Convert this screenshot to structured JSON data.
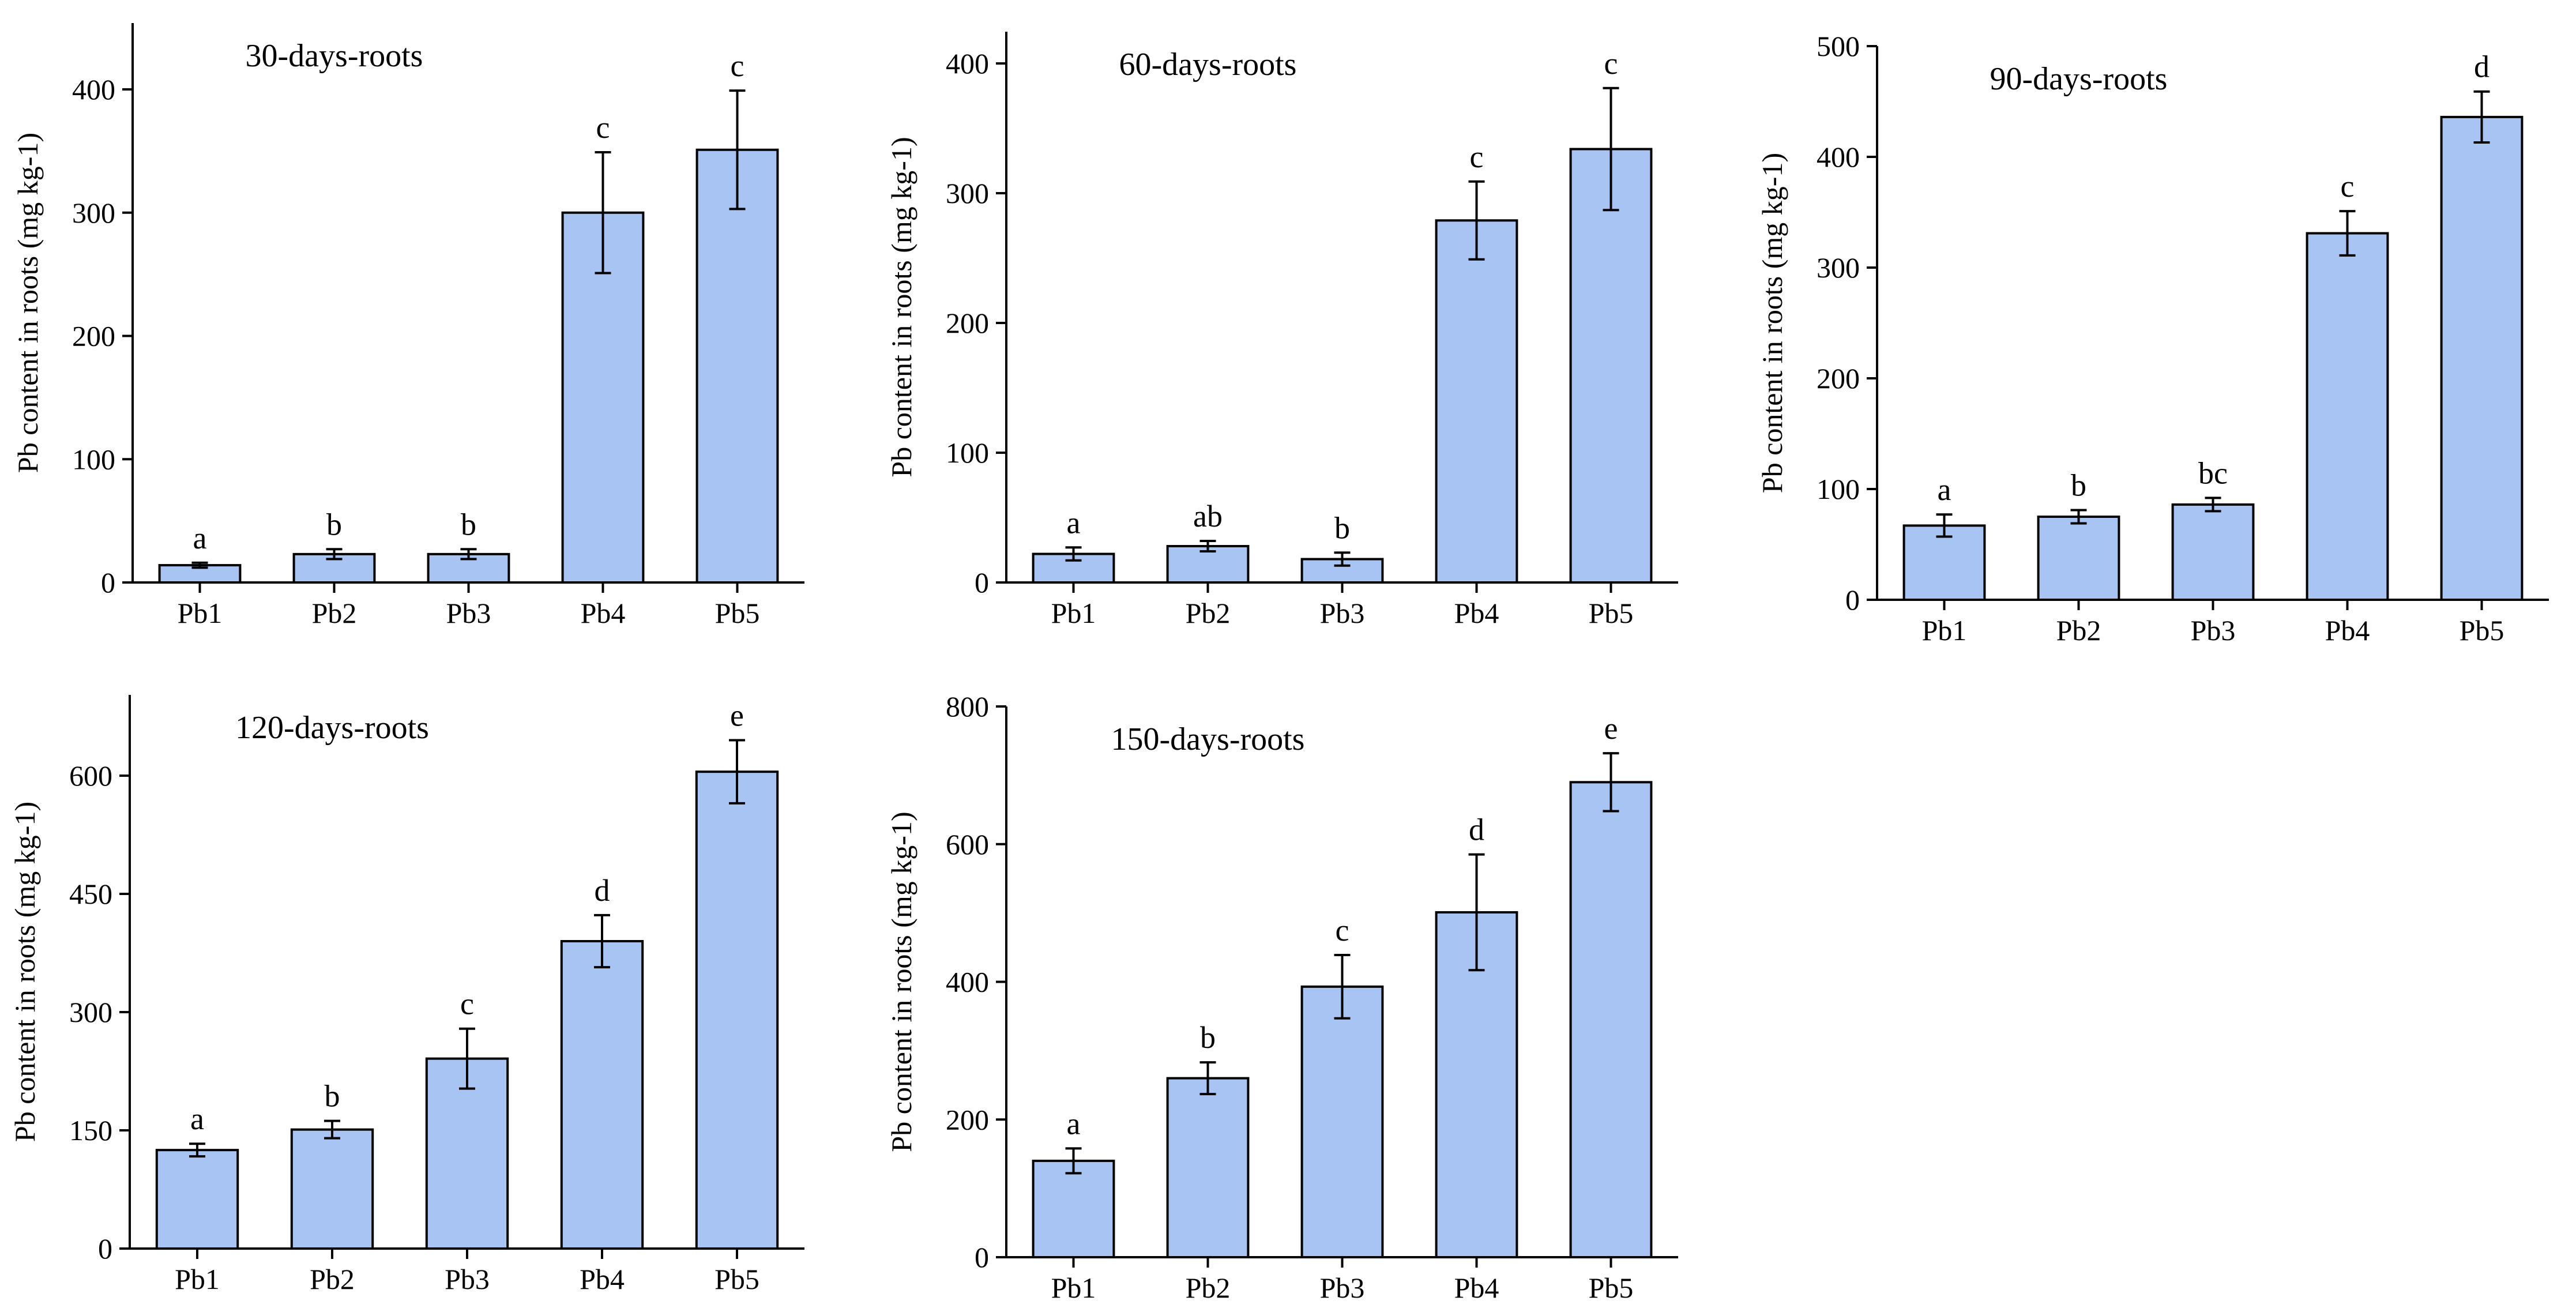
{
  "colors": {
    "bar_fill": "#a8c4f2",
    "bar_stroke": "#000000",
    "axis": "#000000"
  },
  "chart_data": [
    {
      "type": "bar",
      "title": "30-days-roots",
      "ylabel": "Pb content in roots (mg kg-1)",
      "categories": [
        "Pb1",
        "Pb2",
        "Pb3",
        "Pb4",
        "Pb5"
      ],
      "values": [
        14,
        23,
        23,
        300,
        351
      ],
      "errors": [
        2,
        4,
        4,
        49,
        48
      ],
      "letters": [
        "a",
        "b",
        "b",
        "c",
        "c"
      ],
      "ylim": [
        0,
        450
      ],
      "yticks": [
        0,
        100,
        200,
        300,
        400
      ]
    },
    {
      "type": "bar",
      "title": "60-days-roots",
      "ylabel": "Pb content in roots (mg kg-1)",
      "categories": [
        "Pb1",
        "Pb2",
        "Pb3",
        "Pb4",
        "Pb5"
      ],
      "values": [
        22,
        28,
        18,
        279,
        334
      ],
      "errors": [
        5,
        4,
        5,
        30,
        47
      ],
      "letters": [
        "a",
        "ab",
        "b",
        "c",
        "c"
      ],
      "ylim": [
        0,
        430
      ],
      "yticks": [
        0,
        100,
        200,
        300,
        400
      ]
    },
    {
      "type": "bar",
      "title": "90-days-roots",
      "ylabel": "Pb content in roots (mg kg-1)",
      "categories": [
        "Pb1",
        "Pb2",
        "Pb3",
        "Pb4",
        "Pb5"
      ],
      "values": [
        67,
        75,
        86,
        331,
        436
      ],
      "errors": [
        10,
        6,
        6,
        20,
        23
      ],
      "letters": [
        "a",
        "b",
        "bc",
        "c",
        "d"
      ],
      "ylim": [
        0,
        500
      ],
      "yticks": [
        0,
        100,
        200,
        300,
        400,
        500
      ]
    },
    {
      "type": "bar",
      "title": "120-days-roots",
      "ylabel": "Pb content in roots (mg kg-1)",
      "categories": [
        "Pb1",
        "Pb2",
        "Pb3",
        "Pb4",
        "Pb5"
      ],
      "values": [
        125,
        151,
        241,
        390,
        605
      ],
      "errors": [
        8,
        11,
        38,
        33,
        40
      ],
      "letters": [
        "a",
        "b",
        "c",
        "d",
        "e"
      ],
      "ylim": [
        0,
        700
      ],
      "yticks": [
        0,
        150,
        300,
        450,
        600
      ]
    },
    {
      "type": "bar",
      "title": "150-days-roots",
      "ylabel": "Pb content in roots (mg kg-1)",
      "categories": [
        "Pb1",
        "Pb2",
        "Pb3",
        "Pb4",
        "Pb5"
      ],
      "values": [
        140,
        260,
        393,
        501,
        690
      ],
      "errors": [
        18,
        23,
        46,
        84,
        42
      ],
      "letters": [
        "a",
        "b",
        "c",
        "d",
        "e"
      ],
      "ylim": [
        0,
        800
      ],
      "yticks": [
        0,
        200,
        400,
        600,
        800
      ]
    }
  ]
}
